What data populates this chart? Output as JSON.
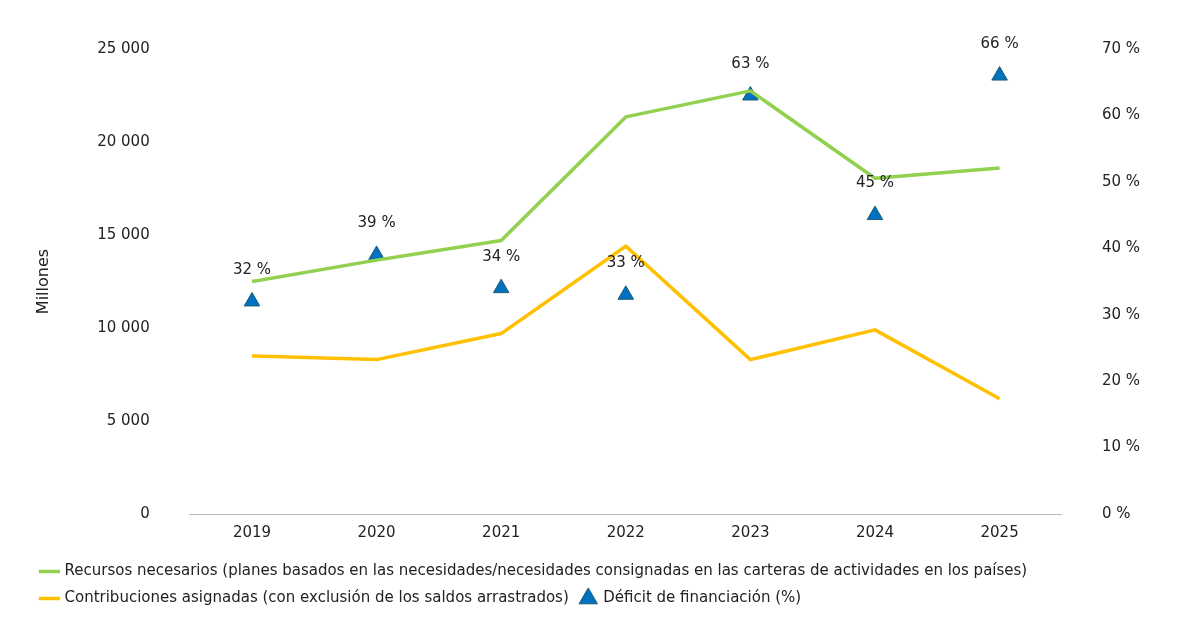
{
  "chart_data": {
    "type": "line",
    "ylabel": "Millones",
    "categories": [
      "2019",
      "2020",
      "2021",
      "2022",
      "2023",
      "2024",
      "2025"
    ],
    "series": [
      {
        "name": "Recursos necesarios (planes basados en las necesidades/necesidades consignadas en las carteras de actividades en los países)",
        "color": "#92d050",
        "values": [
          12500,
          13650,
          14700,
          21350,
          22750,
          18050,
          18600
        ]
      },
      {
        "name": "Contribuciones asignadas (con exclusión de los saldos arrastrados)",
        "color": "#ffc000",
        "values": [
          8500,
          8300,
          9700,
          14400,
          8300,
          9900,
          6200
        ]
      },
      {
        "name": "Déficit de financiación (%)",
        "type": "scatter",
        "axis": "y2",
        "marker": "triangle",
        "color": "#0070c0",
        "values": [
          32,
          39,
          34,
          33,
          63,
          45,
          66
        ],
        "value_labels": [
          "32 %",
          "39 %",
          "34 %",
          "33 %",
          "63 %",
          "45 %",
          "66 %"
        ]
      }
    ],
    "ylim": [
      0,
      25000
    ],
    "yticks": [
      {
        "value": 0,
        "label": "0"
      },
      {
        "value": 5000,
        "label": "5 000"
      },
      {
        "value": 10000,
        "label": "10 000"
      },
      {
        "value": 15000,
        "label": "15 000"
      },
      {
        "value": 20000,
        "label": "20 000"
      },
      {
        "value": 25000,
        "label": "25 000"
      }
    ],
    "y2lim": [
      0,
      70
    ],
    "y2ticks": [
      {
        "value": 0,
        "label": "0 %"
      },
      {
        "value": 10,
        "label": "10 %"
      },
      {
        "value": 20,
        "label": "20 %"
      },
      {
        "value": 30,
        "label": "30 %"
      },
      {
        "value": 40,
        "label": "40 %"
      },
      {
        "value": 50,
        "label": "50 %"
      },
      {
        "value": 60,
        "label": "60 %"
      },
      {
        "value": 70,
        "label": "70 %"
      }
    ],
    "grid": false,
    "legend": "bottom",
    "marker": "none",
    "line_style": "solid"
  }
}
